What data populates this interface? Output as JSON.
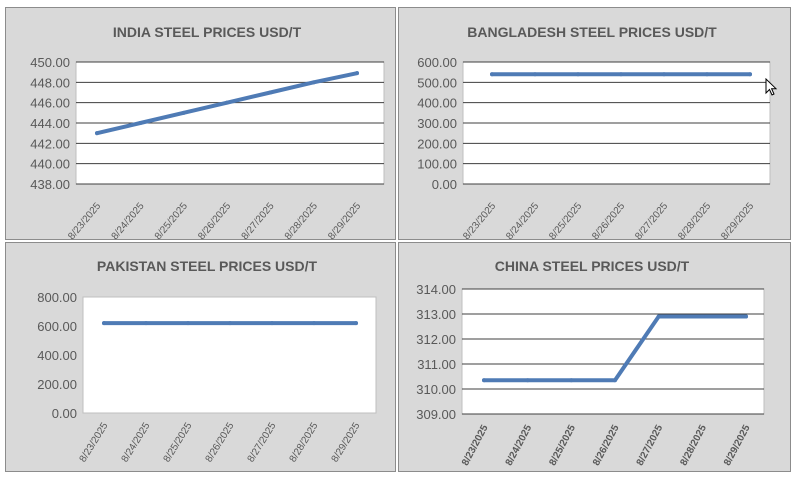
{
  "colors": {
    "line": "#4f7bb5",
    "plot_bg": "#ffffff",
    "panel_bg": "#d9d9d9",
    "grid": "#3f3f3f",
    "text": "#595959"
  },
  "chart_data": [
    {
      "type": "line",
      "title": "INDIA STEEL PRICES USD/T",
      "x": [
        "8/23/2025",
        "8/24/2025",
        "8/25/2025",
        "8/26/2025",
        "8/27/2025",
        "8/28/2025",
        "8/29/2025"
      ],
      "values": [
        443.0,
        444.0,
        445.0,
        446.0,
        447.0,
        448.0,
        448.9
      ],
      "ylim": [
        438,
        450
      ],
      "yticks": [
        "438.00",
        "440.00",
        "442.00",
        "444.00",
        "446.00",
        "448.00",
        "450.00"
      ],
      "grid": true
    },
    {
      "type": "line",
      "title": "BANGLADESH STEEL PRICES USD/T",
      "x": [
        "8/23/2025",
        "8/24/2025",
        "8/25/2025",
        "8/26/2025",
        "8/27/2025",
        "8/28/2025",
        "8/29/2025"
      ],
      "values": [
        540,
        540,
        540,
        540,
        540,
        540,
        540
      ],
      "ylim": [
        0,
        600
      ],
      "yticks": [
        "0.00",
        "100.00",
        "200.00",
        "300.00",
        "400.00",
        "500.00",
        "600.00"
      ],
      "grid": true
    },
    {
      "type": "line",
      "title": "PAKISTAN STEEL PRICES USD/T",
      "x": [
        "8/23/2025",
        "8/24/2025",
        "8/25/2025",
        "8/26/2025",
        "8/27/2025",
        "8/28/2025",
        "8/29/2025"
      ],
      "values": [
        620,
        620,
        620,
        620,
        620,
        620,
        620
      ],
      "ylim": [
        0,
        800
      ],
      "yticks": [
        "0.00",
        "200.00",
        "400.00",
        "600.00",
        "800.00"
      ],
      "grid": false
    },
    {
      "type": "line",
      "title": "CHINA STEEL PRICES USD/T",
      "x": [
        "8/23/2025",
        "8/24/2025",
        "8/25/2025",
        "8/26/2025",
        "8/27/2025",
        "8/28/2025",
        "8/29/2025"
      ],
      "values": [
        310.35,
        310.35,
        310.35,
        310.35,
        312.9,
        312.9,
        312.9
      ],
      "ylim": [
        309,
        314
      ],
      "yticks": [
        "309.00",
        "310.00",
        "311.00",
        "312.00",
        "313.00",
        "314.00"
      ],
      "grid": true
    }
  ]
}
